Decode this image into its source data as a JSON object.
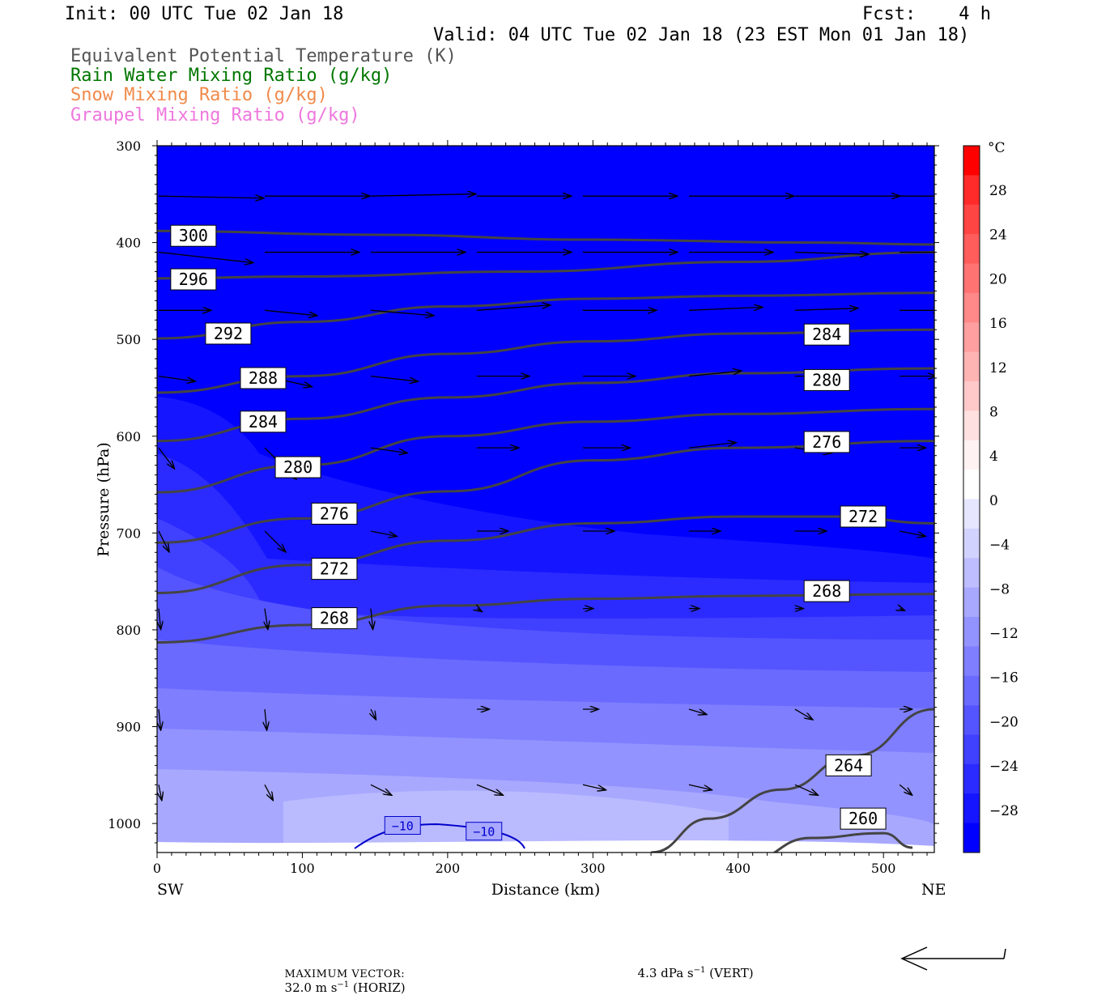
{
  "header": {
    "init": "Init: 00 UTC Tue 02 Jan 18",
    "fcst": "Fcst:    4 h",
    "valid": "Valid: 04 UTC Tue 02 Jan 18 (23 EST Mon 01 Jan 18)",
    "legend": [
      {
        "label": "Equivalent Potential Temperature (K)",
        "color": "#555555"
      },
      {
        "label": "Rain Water Mixing Ratio (g/kg)",
        "color": "#007700"
      },
      {
        "label": "Snow Mixing Ratio (g/kg)",
        "color": "#f08a4b"
      },
      {
        "label": "Graupel Mixing Ratio (g/kg)",
        "color": "#ee77dd"
      }
    ]
  },
  "chart_data": {
    "type": "cross-section",
    "xlabel": "Distance (km)",
    "ylabel": "Pressure (hPa)",
    "xlim": [
      0,
      535
    ],
    "ylim": [
      1030,
      300
    ],
    "x_ticks": [
      "0",
      "100",
      "200",
      "300",
      "400",
      "500"
    ],
    "y_ticks": [
      "300",
      "400",
      "500",
      "600",
      "700",
      "800",
      "900",
      "1000"
    ],
    "left_end_label": "SW",
    "right_end_label": "NE",
    "colorbar": {
      "unit": "°C",
      "ticks": [
        "28",
        "24",
        "20",
        "16",
        "12",
        "8",
        "4",
        "0",
        "−4",
        "−8",
        "−12",
        "−16",
        "−20",
        "−24",
        "−28"
      ],
      "colors": [
        "#ff0000",
        "#ff2a2a",
        "#ff4444",
        "#ff5c5c",
        "#ff7373",
        "#ff8888",
        "#ff9f9f",
        "#ffb4b4",
        "#ffc9c9",
        "#ffe0e0",
        "#fff2f2",
        "#ffffff",
        "#e6e6ff",
        "#d2d2ff",
        "#bdbdff",
        "#a8a8ff",
        "#9393ff",
        "#7e7eff",
        "#6a6aff",
        "#5555ff",
        "#4040ff",
        "#2b2bff",
        "#1515ff",
        "#0000ff"
      ]
    },
    "theta_e_contours": [
      {
        "value": 300,
        "points": [
          [
            0,
            388
          ],
          [
            150,
            392
          ],
          [
            300,
            397
          ],
          [
            450,
            400
          ],
          [
            535,
            402
          ]
        ]
      },
      {
        "value": 296,
        "points": [
          [
            0,
            437
          ],
          [
            100,
            435
          ],
          [
            250,
            430
          ],
          [
            400,
            420
          ],
          [
            535,
            410
          ]
        ]
      },
      {
        "value": 292,
        "points": [
          [
            0,
            499
          ],
          [
            100,
            482
          ],
          [
            200,
            466
          ],
          [
            300,
            458
          ],
          [
            400,
            455
          ],
          [
            535,
            452
          ]
        ]
      },
      {
        "value": 288,
        "points": [
          [
            0,
            555
          ],
          [
            100,
            538
          ],
          [
            200,
            515
          ],
          [
            300,
            502
          ],
          [
            400,
            494
          ],
          [
            535,
            490
          ]
        ]
      },
      {
        "value": 284,
        "points": [
          [
            0,
            605
          ],
          [
            100,
            582
          ],
          [
            200,
            560
          ],
          [
            300,
            545
          ],
          [
            400,
            535
          ],
          [
            535,
            530
          ]
        ]
      },
      {
        "value": 280,
        "points": [
          [
            0,
            658
          ],
          [
            100,
            630
          ],
          [
            200,
            600
          ],
          [
            300,
            585
          ],
          [
            400,
            577
          ],
          [
            535,
            572
          ]
        ]
      },
      {
        "value": 276,
        "points": [
          [
            0,
            710
          ],
          [
            100,
            685
          ],
          [
            200,
            657
          ],
          [
            300,
            625
          ],
          [
            400,
            612
          ],
          [
            535,
            605
          ]
        ]
      },
      {
        "value": 272,
        "points": [
          [
            0,
            762
          ],
          [
            100,
            733
          ],
          [
            200,
            708
          ],
          [
            300,
            690
          ],
          [
            400,
            683
          ],
          [
            470,
            683
          ],
          [
            535,
            690
          ]
        ]
      },
      {
        "value": 268,
        "points": [
          [
            0,
            813
          ],
          [
            100,
            795
          ],
          [
            200,
            775
          ],
          [
            300,
            768
          ],
          [
            400,
            765
          ],
          [
            535,
            763
          ]
        ]
      },
      {
        "value": 264,
        "points": [
          [
            340,
            1030
          ],
          [
            380,
            995
          ],
          [
            430,
            965
          ],
          [
            480,
            930
          ],
          [
            535,
            882
          ]
        ]
      },
      {
        "value": 260,
        "points": [
          [
            405,
            1040
          ],
          [
            450,
            1015
          ],
          [
            500,
            1010
          ],
          [
            520,
            1025
          ]
        ]
      }
    ],
    "theta_e_labels": [
      {
        "value": 300,
        "at": [
          25,
          393
        ]
      },
      {
        "value": 296,
        "at": [
          25,
          438
        ]
      },
      {
        "value": 292,
        "at": [
          49,
          494
        ]
      },
      {
        "value": 288,
        "at": [
          73,
          540
        ]
      },
      {
        "value": 284,
        "at": [
          73,
          585
        ]
      },
      {
        "value": 280,
        "at": [
          97,
          632
        ]
      },
      {
        "value": 276,
        "at": [
          122,
          680
        ]
      },
      {
        "value": 272,
        "at": [
          122,
          737
        ]
      },
      {
        "value": 268,
        "at": [
          122,
          788
        ]
      },
      {
        "value": 284,
        "at": [
          461,
          495
        ]
      },
      {
        "value": 280,
        "at": [
          461,
          542
        ]
      },
      {
        "value": 276,
        "at": [
          461,
          606
        ]
      },
      {
        "value": 272,
        "at": [
          486,
          683
        ]
      },
      {
        "value": 268,
        "at": [
          461,
          760
        ]
      },
      {
        "value": 264,
        "at": [
          476,
          940
        ]
      },
      {
        "value": 260,
        "at": [
          486,
          995
        ]
      }
    ],
    "temperature_labels": [
      {
        "value": "−10",
        "at": [
          169,
          1002
        ]
      },
      {
        "value": "−10",
        "at": [
          225,
          1008
        ]
      }
    ],
    "winds": [
      {
        "x": 0,
        "p": 352,
        "u": 1,
        "v": 0.002
      },
      {
        "x": 73,
        "p": 352,
        "u": 1,
        "v": 0
      },
      {
        "x": 146,
        "p": 352,
        "u": 1,
        "v": -0.002
      },
      {
        "x": 219,
        "p": 352,
        "u": 0.9,
        "v": 0
      },
      {
        "x": 292,
        "p": 352,
        "u": 0.9,
        "v": 0
      },
      {
        "x": 365,
        "p": 352,
        "u": 1,
        "v": 0
      },
      {
        "x": 438,
        "p": 352,
        "u": 1,
        "v": 0
      },
      {
        "x": 510,
        "p": 352,
        "u": 1,
        "v": 0
      },
      {
        "x": 0,
        "p": 410,
        "u": 0.9,
        "v": 0.01
      },
      {
        "x": 73,
        "p": 410,
        "u": 0.9,
        "v": 0
      },
      {
        "x": 146,
        "p": 410,
        "u": 0.9,
        "v": 0
      },
      {
        "x": 219,
        "p": 410,
        "u": 0.9,
        "v": 0
      },
      {
        "x": 292,
        "p": 410,
        "u": 0.9,
        "v": 0
      },
      {
        "x": 365,
        "p": 410,
        "u": 0.8,
        "v": 0
      },
      {
        "x": 438,
        "p": 410,
        "u": 0.7,
        "v": 0.002
      },
      {
        "x": 510,
        "p": 410,
        "u": 0.5,
        "v": 0
      },
      {
        "x": 0,
        "p": 470,
        "u": 0.5,
        "v": 0
      },
      {
        "x": 73,
        "p": 470,
        "u": 0.5,
        "v": 0.005
      },
      {
        "x": 146,
        "p": 470,
        "u": 0.6,
        "v": 0.005
      },
      {
        "x": 219,
        "p": 470,
        "u": 0.7,
        "v": -0.005
      },
      {
        "x": 292,
        "p": 470,
        "u": 0.7,
        "v": 0
      },
      {
        "x": 365,
        "p": 470,
        "u": 0.7,
        "v": -0.003
      },
      {
        "x": 438,
        "p": 470,
        "u": 0.6,
        "v": -0.002
      },
      {
        "x": 510,
        "p": 470,
        "u": 0.4,
        "v": 0
      },
      {
        "x": 0,
        "p": 538,
        "u": 0.35,
        "v": 0.005
      },
      {
        "x": 73,
        "p": 538,
        "u": 0.45,
        "v": 0.01
      },
      {
        "x": 146,
        "p": 538,
        "u": 0.45,
        "v": 0.005
      },
      {
        "x": 219,
        "p": 538,
        "u": 0.5,
        "v": 0
      },
      {
        "x": 292,
        "p": 538,
        "u": 0.5,
        "v": 0
      },
      {
        "x": 365,
        "p": 538,
        "u": 0.5,
        "v": -0.005
      },
      {
        "x": 438,
        "p": 538,
        "u": 0.5,
        "v": 0
      },
      {
        "x": 510,
        "p": 538,
        "u": 0.35,
        "v": 0
      },
      {
        "x": 0,
        "p": 612,
        "u": 0.15,
        "v": 0.02
      },
      {
        "x": 73,
        "p": 612,
        "u": 0.3,
        "v": 0.03
      },
      {
        "x": 146,
        "p": 612,
        "u": 0.35,
        "v": 0.005
      },
      {
        "x": 219,
        "p": 612,
        "u": 0.4,
        "v": 0
      },
      {
        "x": 292,
        "p": 612,
        "u": 0.45,
        "v": 0
      },
      {
        "x": 365,
        "p": 612,
        "u": 0.45,
        "v": -0.005
      },
      {
        "x": 438,
        "p": 612,
        "u": 0.35,
        "v": 0.005
      },
      {
        "x": 510,
        "p": 612,
        "u": 0.25,
        "v": 0
      },
      {
        "x": 0,
        "p": 698,
        "u": 0.1,
        "v": 0.02
      },
      {
        "x": 73,
        "p": 698,
        "u": 0.2,
        "v": 0.02
      },
      {
        "x": 146,
        "p": 698,
        "u": 0.25,
        "v": 0.005
      },
      {
        "x": 219,
        "p": 698,
        "u": 0.3,
        "v": 0
      },
      {
        "x": 292,
        "p": 698,
        "u": 0.3,
        "v": 0
      },
      {
        "x": 365,
        "p": 698,
        "u": 0.3,
        "v": 0
      },
      {
        "x": 438,
        "p": 698,
        "u": 0.3,
        "v": 0
      },
      {
        "x": 510,
        "p": 698,
        "u": 0.25,
        "v": 0.005
      },
      {
        "x": 0,
        "p": 778,
        "u": 0.02,
        "v": 0.02
      },
      {
        "x": 73,
        "p": 778,
        "u": 0.03,
        "v": 0.02
      },
      {
        "x": 146,
        "p": 778,
        "u": 0.02,
        "v": 0.02
      },
      {
        "x": 219,
        "p": 778,
        "u": 0.05,
        "v": 0.003
      },
      {
        "x": 292,
        "p": 778,
        "u": 0.1,
        "v": 0
      },
      {
        "x": 365,
        "p": 778,
        "u": 0.1,
        "v": 0
      },
      {
        "x": 438,
        "p": 778,
        "u": 0.08,
        "v": 0
      },
      {
        "x": 510,
        "p": 778,
        "u": 0.05,
        "v": 0.002
      },
      {
        "x": 0,
        "p": 882,
        "u": 0.02,
        "v": 0.02
      },
      {
        "x": 73,
        "p": 882,
        "u": 0.02,
        "v": 0.02
      },
      {
        "x": 146,
        "p": 882,
        "u": 0.05,
        "v": 0.01
      },
      {
        "x": 219,
        "p": 882,
        "u": 0.12,
        "v": 0
      },
      {
        "x": 292,
        "p": 882,
        "u": 0.15,
        "v": 0
      },
      {
        "x": 365,
        "p": 882,
        "u": 0.17,
        "v": 0.005
      },
      {
        "x": 438,
        "p": 882,
        "u": 0.17,
        "v": 0.01
      },
      {
        "x": 510,
        "p": 882,
        "u": 0.12,
        "v": 0
      },
      {
        "x": 0,
        "p": 960,
        "u": 0.03,
        "v": 0.015
      },
      {
        "x": 73,
        "p": 960,
        "u": 0.08,
        "v": 0.015
      },
      {
        "x": 146,
        "p": 960,
        "u": 0.2,
        "v": 0.01
      },
      {
        "x": 219,
        "p": 960,
        "u": 0.25,
        "v": 0.01
      },
      {
        "x": 292,
        "p": 960,
        "u": 0.22,
        "v": 0.005
      },
      {
        "x": 365,
        "p": 960,
        "u": 0.22,
        "v": 0.005
      },
      {
        "x": 438,
        "p": 960,
        "u": 0.22,
        "v": 0.01
      },
      {
        "x": 510,
        "p": 960,
        "u": 0.12,
        "v": 0.01
      }
    ]
  },
  "footer": {
    "prefix": "MAXIMUM VECTOR:",
    "horiz_value": "32.0 m s",
    "horiz_exp": "−1",
    "horiz_suffix": " (HORIZ)",
    "vert_value": "4.3 dPa s",
    "vert_exp": "−1",
    "vert_suffix": " (VERT)"
  }
}
